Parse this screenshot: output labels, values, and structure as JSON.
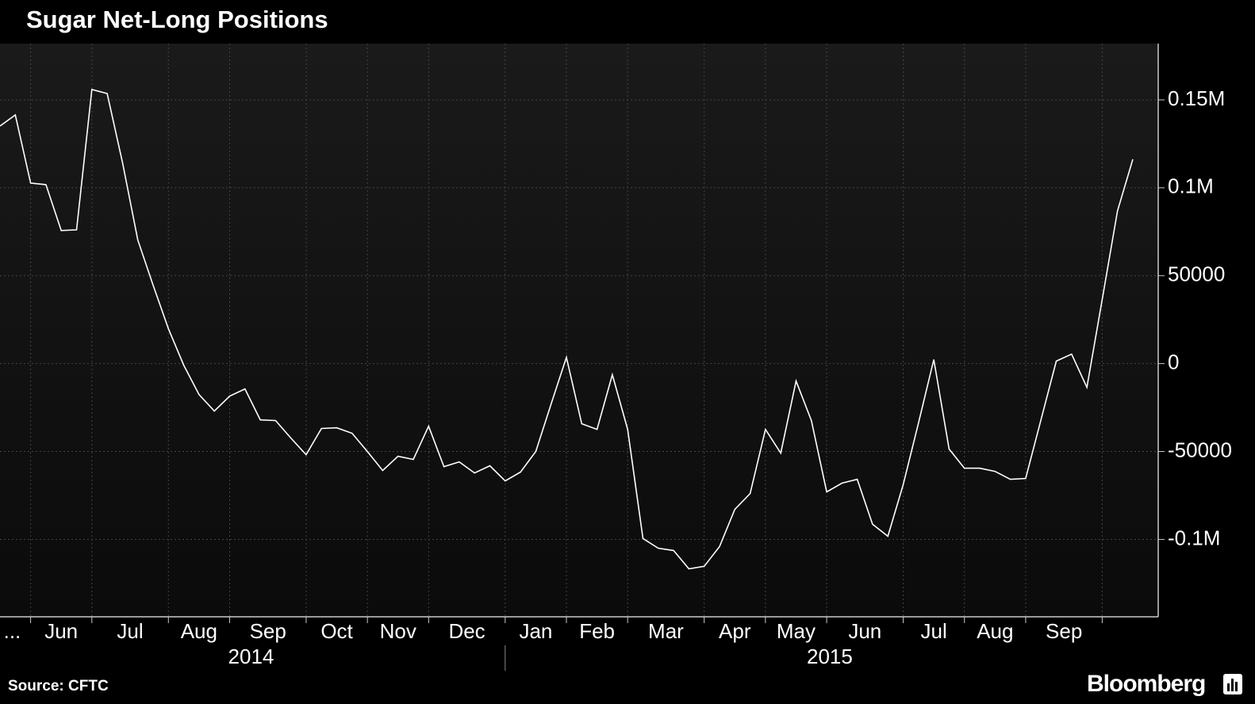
{
  "chart_data": {
    "type": "line",
    "title": "Sugar Net-Long Positions",
    "source": "Source: CFTC",
    "brand": "Bloomberg",
    "color": "#ffffff",
    "grid": true,
    "values": [
      135100,
      141400,
      102700,
      101800,
      75700,
      76100,
      155900,
      153600,
      114400,
      70300,
      44600,
      19800,
      -900,
      -17600,
      -27000,
      -18500,
      -14400,
      -32000,
      -32400,
      -42300,
      -51800,
      -36900,
      -36500,
      -39600,
      -50000,
      -60800,
      -52700,
      -54500,
      -35600,
      -58600,
      -55900,
      -62200,
      -58100,
      -66700,
      -61700,
      -50000,
      -23000,
      3600,
      -34200,
      -37400,
      -6300,
      -37400,
      -99500,
      -105000,
      -106300,
      -116700,
      -115300,
      -104100,
      -82900,
      -73900,
      -37400,
      -50900,
      -9900,
      -32400,
      -73000,
      -68000,
      -65800,
      -91400,
      -98200,
      -68900,
      -33800,
      2300,
      -48600,
      -59500,
      -59500,
      -61300,
      -65800,
      -65300,
      -32000,
      1400,
      5400,
      -13500,
      36500,
      86900,
      116200
    ],
    "ylim": [
      -144000,
      182000
    ],
    "yticks": [
      {
        "value": 150000,
        "label": "0.15M"
      },
      {
        "value": 100000,
        "label": "0.1M"
      },
      50000,
      0,
      -50000,
      {
        "value": -100000,
        "label": "-0.1M"
      }
    ],
    "xticks": [
      {
        "value": 0.8,
        "label": "..."
      },
      {
        "value": 4,
        "label": "Jun"
      },
      {
        "value": 8.5,
        "label": "Jul"
      },
      {
        "value": 13,
        "label": "Aug"
      },
      {
        "value": 17.5,
        "label": "Sep"
      },
      {
        "value": 22,
        "label": "Oct"
      },
      {
        "value": 26,
        "label": "Nov"
      },
      {
        "value": 30.5,
        "label": "Dec"
      },
      {
        "value": 35,
        "label": "Jan"
      },
      {
        "value": 39,
        "label": "Feb"
      },
      {
        "value": 43.5,
        "label": "Mar"
      },
      {
        "value": 48,
        "label": "Apr"
      },
      {
        "value": 52,
        "label": "May"
      },
      {
        "value": 56.5,
        "label": "Jun"
      },
      {
        "value": 61,
        "label": "Jul"
      },
      {
        "value": 65,
        "label": "Aug"
      },
      {
        "value": 69.5,
        "label": "Sep"
      }
    ],
    "xgrid": [
      2,
      6,
      11,
      15,
      20,
      24,
      28,
      33,
      37,
      41,
      46,
      50,
      54,
      59,
      63,
      67,
      72
    ],
    "year_labels": [
      {
        "value": 16.4,
        "label": "2014"
      },
      {
        "value": 54.2,
        "label": "2015"
      }
    ],
    "year_breaks": [
      33
    ]
  }
}
